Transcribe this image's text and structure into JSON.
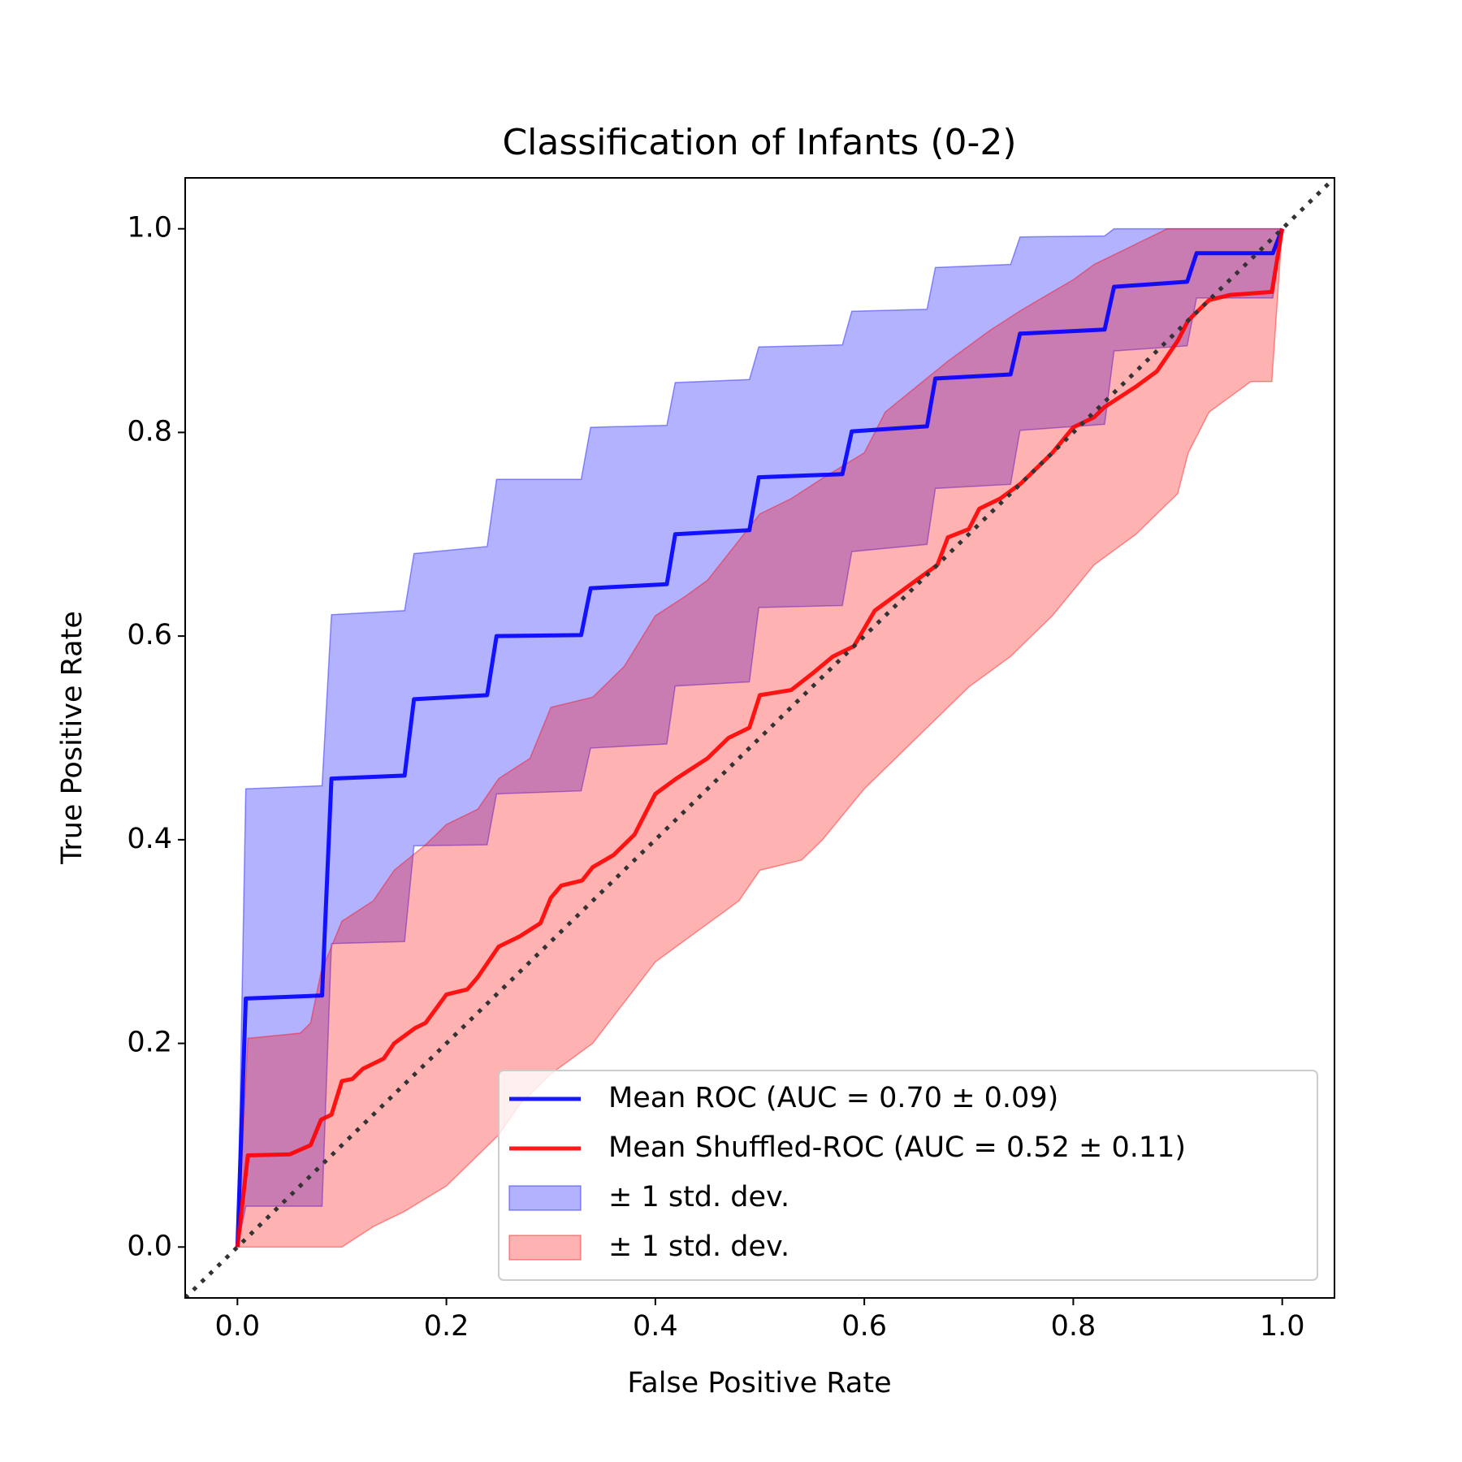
{
  "chart_data": {
    "type": "roc",
    "title": "Classification of Infants (0-2)",
    "x_label": "False Positive Rate",
    "y_label": "True Positive Rate",
    "xlim": [
      -0.05,
      1.05
    ],
    "ylim": [
      -0.05,
      1.05
    ],
    "xticks": [
      {
        "value": 0,
        "label": "0.0"
      },
      0.2,
      0.4,
      0.6,
      0.8,
      {
        "value": 1,
        "label": "1.0"
      }
    ],
    "yticks": [
      {
        "value": 0,
        "label": "0.0"
      },
      0.2,
      0.4,
      0.6,
      0.8,
      {
        "value": 1,
        "label": "1.0"
      }
    ],
    "legend": "lower right",
    "bands": [
      {
        "name": "± 1 std. dev.",
        "color": "#0000ff",
        "opacity": 0.3,
        "upper": {
          "x": [
            0,
            0.008,
            0.081,
            0.09,
            0.16,
            0.169,
            0.239,
            0.248,
            0.329,
            0.338,
            0.411,
            0.419,
            0.49,
            0.499,
            0.579,
            0.588,
            0.66,
            0.668,
            0.74,
            0.749,
            0.83,
            0.839,
            1
          ],
          "values": [
            0,
            0.45,
            0.453,
            0.621,
            0.625,
            0.681,
            0.688,
            0.754,
            0.754,
            0.805,
            0.807,
            0.849,
            0.852,
            0.884,
            0.886,
            0.919,
            0.921,
            0.962,
            0.965,
            0.992,
            0.993,
            1.0,
            1.0
          ]
        },
        "lower": {
          "x": [
            0,
            0.008,
            0.081,
            0.09,
            0.16,
            0.169,
            0.239,
            0.248,
            0.329,
            0.338,
            0.411,
            0.419,
            0.49,
            0.499,
            0.579,
            0.588,
            0.66,
            0.668,
            0.74,
            0.749,
            0.83,
            0.839,
            0.909,
            0.918,
            0.991,
            1
          ],
          "values": [
            0,
            0.04,
            0.04,
            0.298,
            0.3,
            0.394,
            0.395,
            0.445,
            0.448,
            0.49,
            0.494,
            0.551,
            0.555,
            0.628,
            0.63,
            0.683,
            0.69,
            0.745,
            0.749,
            0.802,
            0.808,
            0.88,
            0.885,
            0.932,
            0.932,
            1.0
          ]
        }
      },
      {
        "name": "± 1 std. dev.",
        "color": "#ff0000",
        "opacity": 0.3,
        "upper": {
          "x": [
            0,
            0.01,
            0.06,
            0.07,
            0.08,
            0.1,
            0.13,
            0.15,
            0.18,
            0.2,
            0.23,
            0.25,
            0.28,
            0.3,
            0.34,
            0.37,
            0.4,
            0.43,
            0.45,
            0.5,
            0.53,
            0.56,
            0.6,
            0.62,
            0.65,
            0.68,
            0.72,
            0.75,
            0.8,
            0.82,
            0.86,
            0.89,
            1
          ],
          "values": [
            0,
            0.205,
            0.21,
            0.22,
            0.27,
            0.32,
            0.34,
            0.37,
            0.395,
            0.415,
            0.43,
            0.46,
            0.48,
            0.53,
            0.54,
            0.57,
            0.62,
            0.64,
            0.655,
            0.72,
            0.735,
            0.755,
            0.78,
            0.82,
            0.845,
            0.87,
            0.9,
            0.92,
            0.95,
            0.965,
            0.985,
            1.0,
            1.0
          ]
        },
        "lower": {
          "x": [
            0,
            0.1,
            0.13,
            0.16,
            0.2,
            0.23,
            0.25,
            0.27,
            0.3,
            0.34,
            0.37,
            0.4,
            0.44,
            0.48,
            0.5,
            0.54,
            0.56,
            0.6,
            0.63,
            0.67,
            0.7,
            0.74,
            0.78,
            0.82,
            0.86,
            0.9,
            0.91,
            0.93,
            0.97,
            0.99,
            1
          ],
          "values": [
            0,
            0,
            0.02,
            0.035,
            0.06,
            0.09,
            0.11,
            0.14,
            0.17,
            0.2,
            0.24,
            0.28,
            0.31,
            0.34,
            0.37,
            0.38,
            0.4,
            0.45,
            0.48,
            0.52,
            0.55,
            0.58,
            0.62,
            0.67,
            0.7,
            0.74,
            0.78,
            0.82,
            0.85,
            0.85,
            1.0
          ]
        }
      }
    ],
    "series": [
      {
        "name": "Mean ROC (AUC = 0.70 ± 0.09)",
        "color": "#0000ff",
        "x": [
          0,
          0.008,
          0.081,
          0.09,
          0.16,
          0.169,
          0.239,
          0.248,
          0.329,
          0.338,
          0.411,
          0.419,
          0.49,
          0.499,
          0.579,
          0.588,
          0.66,
          0.668,
          0.74,
          0.749,
          0.83,
          0.839,
          0.909,
          0.918,
          0.991,
          1
        ],
        "values": [
          0,
          0.244,
          0.247,
          0.46,
          0.463,
          0.538,
          0.542,
          0.6,
          0.601,
          0.647,
          0.651,
          0.7,
          0.704,
          0.756,
          0.759,
          0.801,
          0.806,
          0.853,
          0.857,
          0.897,
          0.901,
          0.943,
          0.948,
          0.976,
          0.976,
          1.0
        ]
      },
      {
        "name": "Mean Shuffled-ROC (AUC = 0.52 ± 0.11)",
        "color": "#ff0000",
        "x": [
          0,
          0.01,
          0.05,
          0.07,
          0.08,
          0.09,
          0.1,
          0.11,
          0.12,
          0.14,
          0.15,
          0.17,
          0.18,
          0.2,
          0.22,
          0.23,
          0.25,
          0.27,
          0.29,
          0.3,
          0.31,
          0.33,
          0.34,
          0.36,
          0.38,
          0.4,
          0.42,
          0.45,
          0.47,
          0.49,
          0.5,
          0.53,
          0.55,
          0.57,
          0.59,
          0.61,
          0.63,
          0.65,
          0.67,
          0.68,
          0.7,
          0.71,
          0.73,
          0.75,
          0.76,
          0.78,
          0.8,
          0.82,
          0.83,
          0.86,
          0.88,
          0.9,
          0.91,
          0.93,
          0.95,
          0.99,
          1
        ],
        "values": [
          0,
          0.09,
          0.091,
          0.1,
          0.125,
          0.13,
          0.163,
          0.165,
          0.175,
          0.185,
          0.2,
          0.215,
          0.22,
          0.248,
          0.253,
          0.265,
          0.295,
          0.305,
          0.318,
          0.343,
          0.355,
          0.36,
          0.373,
          0.385,
          0.405,
          0.445,
          0.46,
          0.48,
          0.5,
          0.51,
          0.542,
          0.547,
          0.563,
          0.58,
          0.59,
          0.625,
          0.64,
          0.655,
          0.67,
          0.697,
          0.705,
          0.725,
          0.735,
          0.75,
          0.76,
          0.78,
          0.805,
          0.815,
          0.825,
          0.845,
          0.86,
          0.89,
          0.91,
          0.93,
          0.935,
          0.938,
          1.0
        ]
      }
    ],
    "reference_line": {
      "x": [
        -0.05,
        1.05
      ],
      "values": [
        -0.05,
        1.05
      ],
      "color": "#333333"
    }
  }
}
